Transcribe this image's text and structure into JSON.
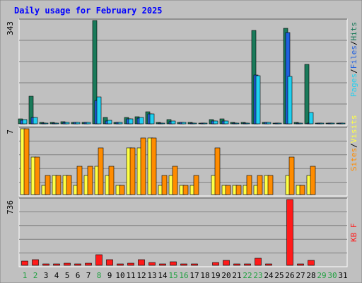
{
  "colors": {
    "frame_bg": "#c0c0c0",
    "panel_bg": "#c0c0c0",
    "grid": "#808080",
    "title": "#0000ff",
    "hits": "#1a7a5a",
    "files": "#2060e0",
    "pages": "#20d0f0",
    "visits": "#ffff44",
    "sites": "#ff8c00",
    "kbf": "#ff1a1a",
    "weekend_label": "#20a040",
    "weekday_label": "#000000"
  },
  "chart_data": {
    "type": "bar",
    "title": "Daily usage for February 2025",
    "categories": [
      "1",
      "2",
      "3",
      "4",
      "5",
      "6",
      "7",
      "8",
      "9",
      "10",
      "11",
      "12",
      "13",
      "14",
      "15",
      "16",
      "17",
      "18",
      "19",
      "20",
      "21",
      "22",
      "23",
      "24",
      "25",
      "26",
      "27",
      "28",
      "29",
      "30",
      "31"
    ],
    "weekend_days": [
      "1",
      "2",
      "8",
      "15",
      "16",
      "22",
      "23",
      "29",
      "30"
    ],
    "panels": [
      {
        "name": "hits_files_pages",
        "ymax_label": "343",
        "ymax": 343,
        "legend": [
          "Pages",
          "/",
          "Files",
          "/",
          "Hits"
        ],
        "series": [
          {
            "name": "Hits",
            "values": [
              16,
              92,
              2,
              2,
              8,
              5,
              4,
              343,
              22,
              4,
              22,
              24,
              40,
              2,
              14,
              3,
              2,
              0,
              14,
              17,
              2,
              2,
              309,
              5,
              0,
              316,
              2,
              198,
              0,
              0,
              0
            ]
          },
          {
            "name": "Files",
            "values": [
              11,
              22,
              0,
              0,
              4,
              3,
              2,
              78,
              10,
              2,
              16,
              19,
              33,
              0,
              8,
              1,
              0,
              0,
              9,
              9,
              0,
              0,
              162,
              2,
              0,
              302,
              0,
              0,
              0,
              0,
              0
            ]
          },
          {
            "name": "Pages",
            "values": [
              13,
              22,
              0,
              0,
              4,
              3,
              2,
              90,
              11,
              3,
              17,
              20,
              34,
              0,
              9,
              2,
              0,
              0,
              10,
              10,
              0,
              0,
              159,
              3,
              0,
              157,
              0,
              38,
              0,
              0,
              0
            ]
          }
        ]
      },
      {
        "name": "visits_sites",
        "ymax_label": "7",
        "ymax": 7,
        "legend": [
          "Sites",
          "/",
          "Visits"
        ],
        "series": [
          {
            "name": "Visits",
            "values": [
              7,
              4,
              1,
              2,
              2,
              1,
              2,
              3,
              2,
              1,
              5,
              5,
              6,
              1,
              2,
              1,
              1,
              0,
              2,
              1,
              1,
              1,
              1,
              2,
              0,
              2,
              1,
              2,
              0,
              0,
              0
            ]
          },
          {
            "name": "Sites",
            "values": [
              7,
              4,
              2,
              2,
              2,
              3,
              3,
              5,
              3,
              1,
              5,
              6,
              6,
              2,
              3,
              1,
              2,
              0,
              5,
              1,
              1,
              2,
              2,
              2,
              0,
              4,
              1,
              3,
              0,
              0,
              0
            ]
          }
        ]
      },
      {
        "name": "kbf",
        "ymax_label": "736",
        "ymax": 736,
        "legend": [
          "KB F"
        ],
        "series": [
          {
            "name": "KB F",
            "values": [
              45,
              65,
              14,
              14,
              22,
              18,
              22,
              120,
              60,
              14,
              22,
              65,
              28,
              18,
              36,
              14,
              10,
              0,
              28,
              52,
              14,
              14,
              80,
              10,
              0,
              736,
              10,
              55,
              0,
              0,
              0
            ]
          }
        ]
      }
    ]
  }
}
